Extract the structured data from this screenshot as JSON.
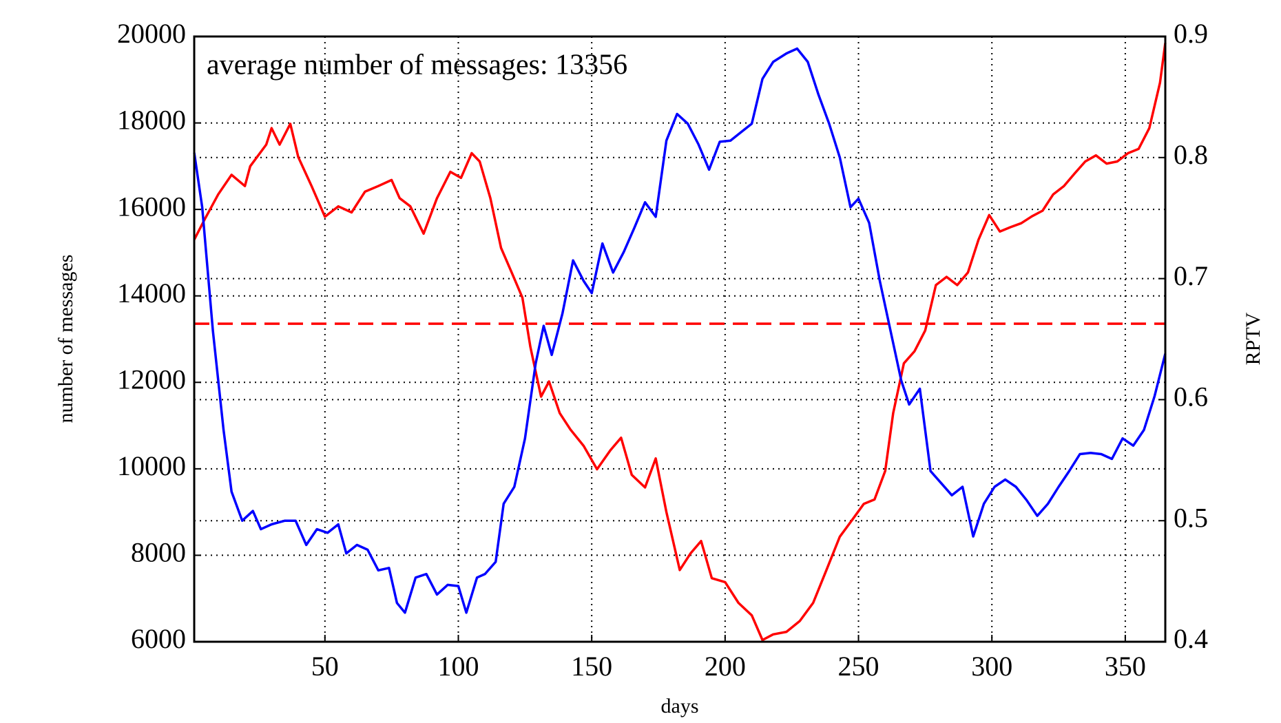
{
  "chart_data": {
    "type": "line",
    "xlabel": "days",
    "ylabel": "number of messages",
    "y2label": "RPTV",
    "annotation": "average number of messages: 13356",
    "hline": {
      "value": 13356,
      "color": "#ff0000"
    },
    "xlim": [
      1,
      365
    ],
    "xticks": [
      50,
      100,
      150,
      200,
      250,
      300,
      350
    ],
    "ylim": [
      6000,
      20000
    ],
    "yticks": [
      6000,
      8000,
      10000,
      12000,
      14000,
      16000,
      18000,
      20000
    ],
    "y2lim": [
      0.4,
      0.9
    ],
    "y2ticks": [
      0.4,
      0.5,
      0.6,
      0.7,
      0.8,
      0.9
    ],
    "grid": true,
    "series": [
      {
        "name": "number of messages",
        "color": "#ff0000",
        "axis": "y",
        "x": [
          1,
          5,
          10,
          15,
          20,
          22,
          28,
          30,
          33,
          37,
          40,
          45,
          50,
          55,
          60,
          65,
          70,
          75,
          78,
          82,
          87,
          92,
          97,
          101,
          105,
          108,
          112,
          116,
          120,
          124,
          127,
          131,
          134,
          138,
          142,
          147,
          152,
          157,
          161,
          165,
          170,
          174,
          178,
          183,
          187,
          191,
          195,
          200,
          205,
          210,
          214,
          218,
          223,
          228,
          233,
          238,
          243,
          248,
          252,
          256,
          260,
          263,
          267,
          271,
          275,
          279,
          283,
          287,
          291,
          295,
          299,
          303,
          307,
          311,
          315,
          319,
          323,
          327,
          331,
          335,
          339,
          343,
          347,
          351,
          355,
          359,
          363,
          365
        ],
        "values": [
          15300,
          15780,
          16350,
          16800,
          16540,
          17000,
          17500,
          17880,
          17500,
          17980,
          17210,
          16540,
          15830,
          16070,
          15930,
          16410,
          16540,
          16680,
          16260,
          16070,
          15440,
          16260,
          16870,
          16730,
          17300,
          17110,
          16260,
          15110,
          14540,
          13960,
          12820,
          11670,
          12020,
          11290,
          10910,
          10530,
          9990,
          10430,
          10720,
          9860,
          9570,
          10240,
          9000,
          7660,
          8040,
          8330,
          7470,
          7380,
          6900,
          6610,
          6040,
          6170,
          6230,
          6480,
          6900,
          7660,
          8430,
          8850,
          9190,
          9290,
          9950,
          11290,
          12440,
          12720,
          13200,
          14250,
          14440,
          14250,
          14540,
          15300,
          15870,
          15490,
          15590,
          15680,
          15840,
          15970,
          16350,
          16540,
          16830,
          17110,
          17250,
          17060,
          17110,
          17300,
          17400,
          17880,
          18930,
          19850
        ]
      },
      {
        "name": "RPTV",
        "color": "#0000ff",
        "axis": "y2",
        "x": [
          1,
          4,
          8,
          12,
          15,
          19,
          23,
          26,
          30,
          35,
          39,
          43,
          47,
          51,
          55,
          58,
          62,
          66,
          70,
          74,
          77,
          80,
          84,
          88,
          92,
          96,
          100,
          103,
          107,
          110,
          114,
          117,
          121,
          125,
          129,
          132,
          135,
          139,
          143,
          147,
          150,
          154,
          158,
          162,
          166,
          170,
          174,
          178,
          182,
          186,
          190,
          194,
          198,
          202,
          206,
          210,
          214,
          218,
          223,
          227,
          231,
          235,
          239,
          243,
          247,
          250,
          254,
          258,
          262,
          266,
          269,
          273,
          277,
          281,
          285,
          289,
          293,
          297,
          301,
          305,
          309,
          313,
          317,
          321,
          325,
          329,
          333,
          337,
          341,
          345,
          349,
          353,
          357,
          361,
          365
        ],
        "values": [
          0.804,
          0.759,
          0.657,
          0.575,
          0.524,
          0.5,
          0.508,
          0.493,
          0.497,
          0.5,
          0.5,
          0.48,
          0.493,
          0.49,
          0.497,
          0.473,
          0.48,
          0.476,
          0.459,
          0.461,
          0.432,
          0.424,
          0.453,
          0.456,
          0.439,
          0.447,
          0.446,
          0.424,
          0.453,
          0.456,
          0.466,
          0.514,
          0.528,
          0.568,
          0.63,
          0.661,
          0.637,
          0.671,
          0.715,
          0.698,
          0.688,
          0.729,
          0.705,
          0.722,
          0.742,
          0.763,
          0.751,
          0.814,
          0.836,
          0.828,
          0.811,
          0.79,
          0.813,
          0.814,
          0.821,
          0.828,
          0.865,
          0.879,
          0.886,
          0.89,
          0.879,
          0.852,
          0.828,
          0.8,
          0.759,
          0.766,
          0.746,
          0.698,
          0.657,
          0.616,
          0.596,
          0.609,
          0.541,
          0.531,
          0.521,
          0.528,
          0.487,
          0.514,
          0.528,
          0.534,
          0.528,
          0.517,
          0.504,
          0.514,
          0.528,
          0.541,
          0.555,
          0.556,
          0.555,
          0.551,
          0.568,
          0.562,
          0.575,
          0.603,
          0.638
        ]
      }
    ]
  }
}
